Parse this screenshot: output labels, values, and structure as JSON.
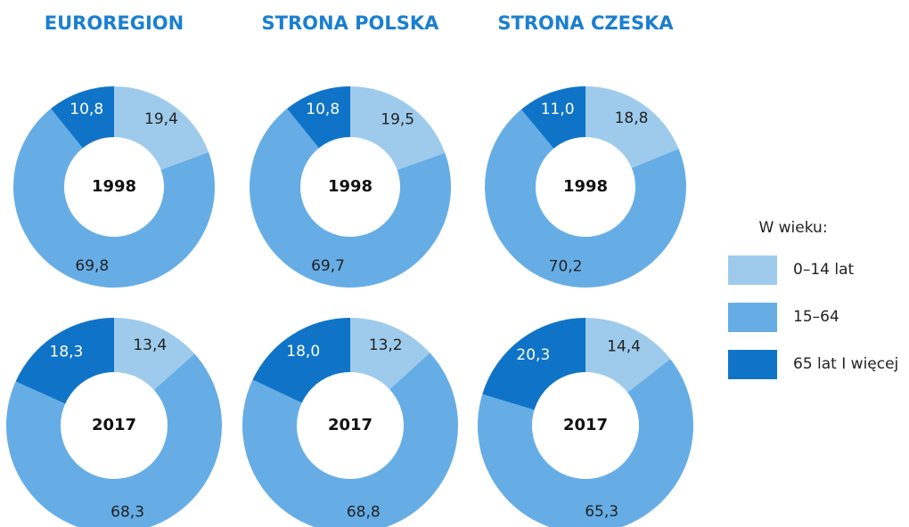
{
  "chart_data": [
    {
      "type": "donut",
      "title": "EUROREGION",
      "center_label": "1998",
      "values": [
        19.4,
        69.8,
        10.8
      ],
      "value_labels": [
        "19,4",
        "69,8",
        "10,8"
      ]
    },
    {
      "type": "donut",
      "title": "STRONA POLSKA",
      "center_label": "1998",
      "values": [
        19.5,
        69.7,
        10.8
      ],
      "value_labels": [
        "19,5",
        "69,7",
        "10,8"
      ]
    },
    {
      "type": "donut",
      "title": "STRONA CZESKA",
      "center_label": "1998",
      "values": [
        18.8,
        70.2,
        11.0
      ],
      "value_labels": [
        "18,8",
        "70,2",
        "11,0"
      ]
    },
    {
      "type": "donut",
      "center_label": "2017",
      "values": [
        13.4,
        68.3,
        18.3
      ],
      "value_labels": [
        "13,4",
        "68,3",
        "18,3"
      ]
    },
    {
      "type": "donut",
      "center_label": "2017",
      "values": [
        13.2,
        68.8,
        18.0
      ],
      "value_labels": [
        "13,2",
        "68,8",
        "18,0"
      ]
    },
    {
      "type": "donut",
      "center_label": "2017",
      "values": [
        14.4,
        65.3,
        20.3
      ],
      "value_labels": [
        "14,4",
        "65,3",
        "20,3"
      ]
    }
  ],
  "legend": {
    "title": "W wieku:",
    "categories": [
      "0–14 lat",
      "15–64",
      "65 lat I więcej"
    ],
    "colors": [
      "#9ecbec",
      "#66ade6",
      "#0f74c8"
    ]
  }
}
